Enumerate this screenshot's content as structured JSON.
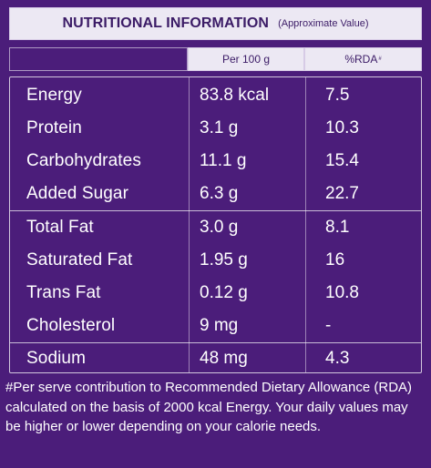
{
  "header": {
    "title": "Nutritional Information",
    "note": "(Approximate Value)"
  },
  "columns": {
    "per100": "Per 100 g",
    "rda": "%RDA",
    "rda_superscript": "#"
  },
  "rows": [
    {
      "nutrient": "Energy",
      "per_100g": "83.8 kcal",
      "rda": "7.5"
    },
    {
      "nutrient": "Protein",
      "per_100g": "3.1 g",
      "rda": "10.3"
    },
    {
      "nutrient": "Carbohydrates",
      "per_100g": "11.1 g",
      "rda": "15.4"
    },
    {
      "nutrient": "Added Sugar",
      "per_100g": "6.3 g",
      "rda": "22.7"
    },
    {
      "nutrient": "Total Fat",
      "per_100g": "3.0 g",
      "rda": "8.1"
    },
    {
      "nutrient": "Saturated Fat",
      "per_100g": "1.95 g",
      "rda": "16"
    },
    {
      "nutrient": "Trans Fat",
      "per_100g": "0.12 g",
      "rda": "10.8"
    },
    {
      "nutrient": "Cholesterol",
      "per_100g": "9 mg",
      "rda": "-"
    },
    {
      "nutrient": "Sodium",
      "per_100g": "48 mg",
      "rda": "4.3"
    }
  ],
  "footer": {
    "text": "#Per serve contribution to Recommended Dietary Allowance (RDA) calculated on the basis of 2000 kcal Energy. Your daily values may be higher or lower depending on your calorie needs."
  },
  "colors": {
    "background": "#4b1d7a",
    "header_fill": "#ece8f3",
    "header_text": "#3b1b66",
    "text": "#ffffff"
  }
}
